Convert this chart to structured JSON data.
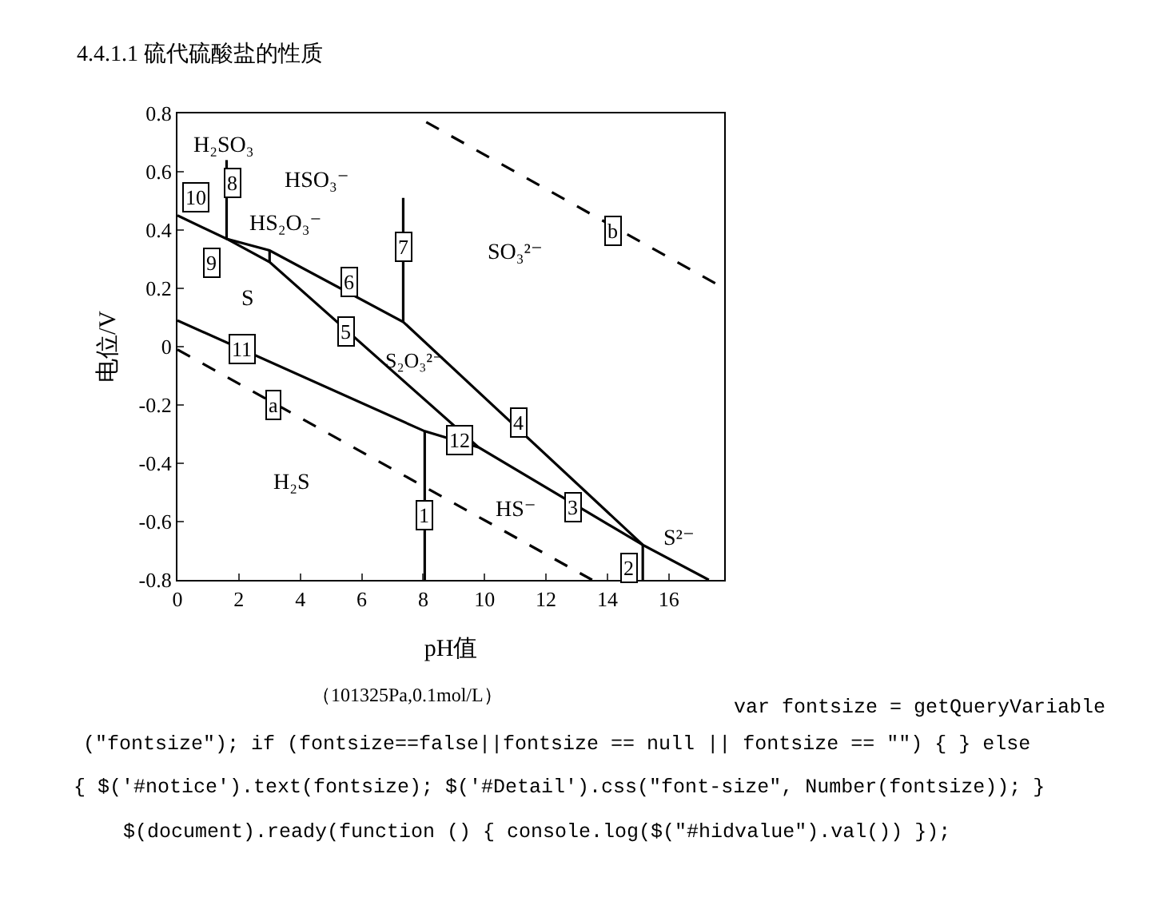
{
  "chart_data": {
    "type": "line",
    "title": "4.4.1.1 硫代硫酸盐的性质",
    "xlabel": "pH值",
    "ylabel": "电位/V",
    "xlim": [
      0,
      17.8
    ],
    "xticks": [
      0,
      2,
      4,
      6,
      8,
      10,
      12,
      14,
      16
    ],
    "ylim": [
      -0.8,
      0.8
    ],
    "yticks": [
      -0.8,
      -0.6,
      -0.4,
      -0.2,
      0,
      0.2,
      0.4,
      0.6,
      0.8
    ],
    "grid": false,
    "marker": "none",
    "series": [
      {
        "color": "#000000",
        "line_style": "solid",
        "x": [
          0,
          1.6,
          3,
          7.35,
          15.15,
          17.3
        ],
        "values": [
          0.45,
          0.37,
          0.33,
          0.085,
          -0.68,
          -0.8
        ]
      },
      {
        "color": "#000000",
        "line_style": "solid",
        "x": [
          1.6,
          3,
          9.8,
          15.15
        ],
        "values": [
          0.37,
          0.29,
          -0.345,
          -0.68
        ]
      },
      {
        "color": "#000000",
        "line_style": "solid",
        "x": [
          0,
          8.05,
          9.8
        ],
        "values": [
          0.09,
          -0.29,
          -0.345
        ]
      },
      {
        "color": "#000000",
        "line_style": "solid",
        "x": [
          1.6,
          1.6
        ],
        "values": [
          0.37,
          0.64
        ]
      },
      {
        "color": "#000000",
        "line_style": "solid",
        "x": [
          3,
          3
        ],
        "values": [
          0.29,
          0.33
        ]
      },
      {
        "color": "#000000",
        "line_style": "solid",
        "x": [
          7.35,
          7.35
        ],
        "values": [
          0.085,
          0.51
        ]
      },
      {
        "color": "#000000",
        "line_style": "solid",
        "x": [
          8.05,
          8.05
        ],
        "values": [
          -0.29,
          -0.8
        ]
      },
      {
        "color": "#000000",
        "line_style": "solid",
        "x": [
          15.15,
          15.15
        ],
        "values": [
          -0.68,
          -0.8
        ]
      },
      {
        "color": "#000000",
        "line_style": "dashed",
        "x": [
          0,
          13.5
        ],
        "values": [
          -0.01,
          -0.8
        ]
      },
      {
        "color": "#000000",
        "line_style": "dashed",
        "x": [
          8.1,
          17.8
        ],
        "values": [
          0.77,
          0.2
        ]
      }
    ],
    "annotations": [
      "H₂SO₃",
      "HSO₃⁻",
      "HS₂O₃⁻",
      "S",
      "SO₃²⁻",
      "S₂O₃²⁻",
      "H₂S",
      "HS⁻",
      "S²⁻",
      {
        "text": "1",
        "x": 8.05,
        "y": -0.58
      },
      {
        "text": "2",
        "x": 14.7,
        "y": -0.76
      },
      {
        "text": "3",
        "x": 12.9,
        "y": -0.55
      },
      {
        "text": "4",
        "x": 11.1,
        "y": -0.26
      },
      {
        "text": "5",
        "x": 5.5,
        "y": 0.05
      },
      {
        "text": "6",
        "x": 5.6,
        "y": 0.22
      },
      {
        "text": "7",
        "x": 7.35,
        "y": 0.34
      },
      {
        "text": "8",
        "x": 1.8,
        "y": 0.56
      },
      {
        "text": "9",
        "x": 1.1,
        "y": 0.29
      },
      {
        "text": "10",
        "x": 0.6,
        "y": 0.51
      },
      {
        "text": "11",
        "x": 2.1,
        "y": -0.01
      },
      {
        "text": "12",
        "x": 9.2,
        "y": -0.32
      },
      {
        "text": "a",
        "x": 3.1,
        "y": -0.2
      },
      {
        "text": "b",
        "x": 14.2,
        "y": 0.4
      },
      "（101325Pa,0.1mol/L）",
      "var fontsize = getQueryVariable",
      "(\"fontsize\"); if (fontsize==false||fontsize == null || fontsize == \"\") { } else",
      "{ $('#notice').text(fontsize); $('#Detail').css(\"font-size\", Number(fontsize)); }",
      "$(document).ready(function () { console.log($(\"#hidvalue\").val()) });"
    ]
  }
}
